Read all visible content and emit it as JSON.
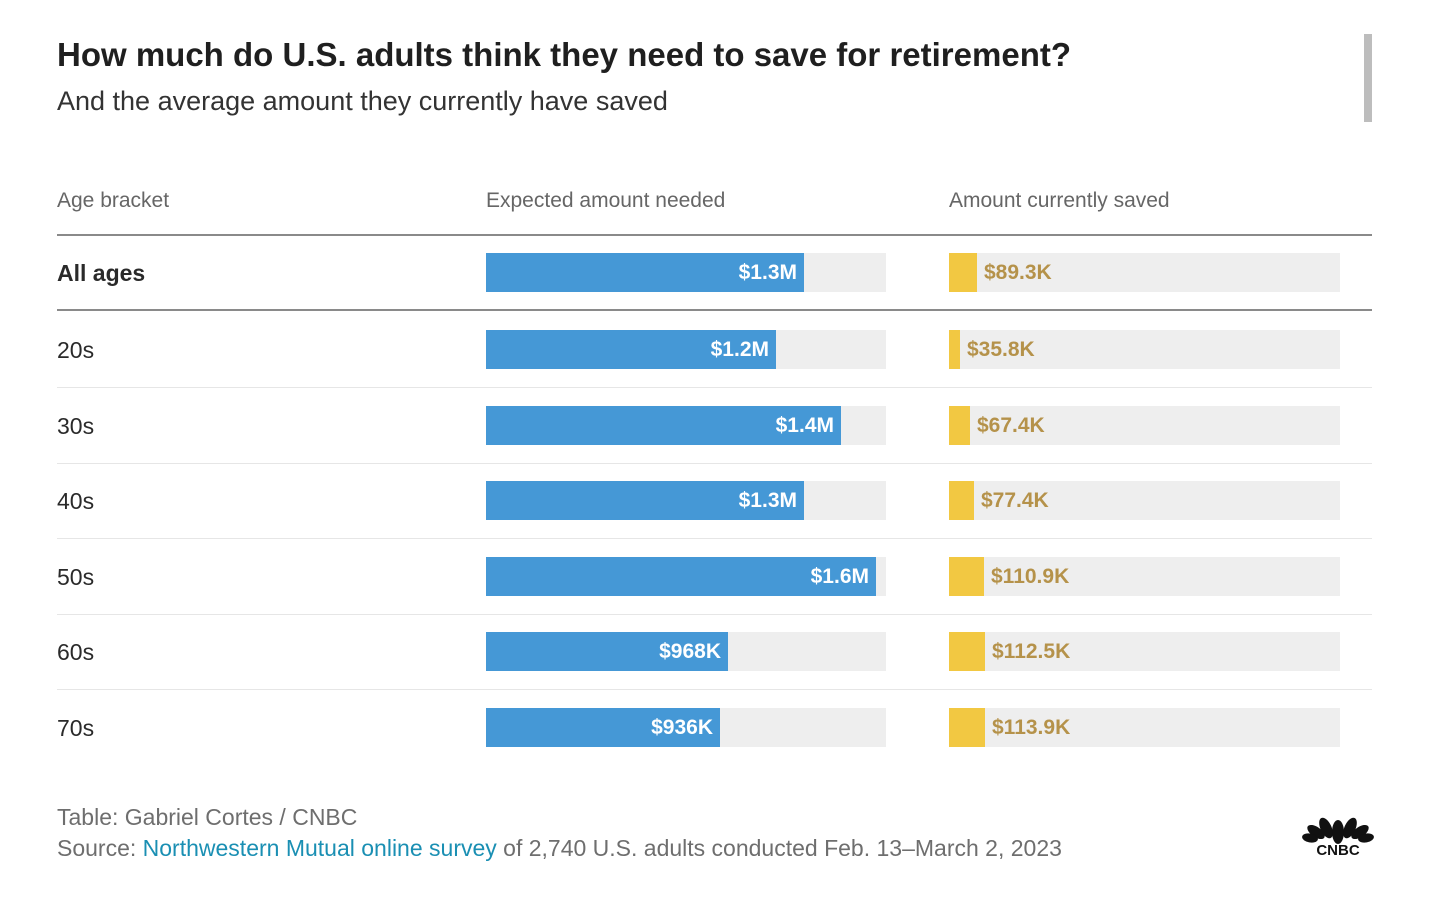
{
  "title": "How much do U.S. adults think they need to save for retirement?",
  "subtitle": "And the average amount they currently have saved",
  "columns": {
    "age": "Age bracket",
    "expected": "Expected amount needed",
    "saved": "Amount currently saved"
  },
  "chart_data": {
    "type": "table",
    "title": "How much do U.S. adults think they need to save for retirement?",
    "subtitle": "And the average amount they currently have saved",
    "categories": [
      "All ages",
      "20s",
      "30s",
      "40s",
      "50s",
      "60s",
      "70s"
    ],
    "series": [
      {
        "name": "Expected amount needed",
        "values": [
          1270000,
          1160000,
          1420000,
          1270000,
          1560000,
          968000,
          936000
        ],
        "labels": [
          "$1.3M",
          "$1.2M",
          "$1.4M",
          "$1.3M",
          "$1.6M",
          "$968K",
          "$936K"
        ],
        "max": 1600000
      },
      {
        "name": "Amount currently saved",
        "values": [
          89300,
          35800,
          67400,
          77400,
          110900,
          112500,
          113900
        ],
        "labels": [
          "$89.3K",
          "$35.8K",
          "$67.4K",
          "$77.4K",
          "$110.9K",
          "$112.5K",
          "$113.9K"
        ],
        "max": 1600000
      }
    ],
    "colors": {
      "expected": "#4598d6",
      "saved": "#f2c842",
      "saved_label": "#b5924a",
      "track": "#eeeeee"
    }
  },
  "footer": {
    "credit": "Table: Gabriel Cortes / CNBC",
    "source_prefix": "Source: ",
    "source_link": "Northwestern Mutual online survey",
    "source_suffix": " of 2,740 U.S. adults conducted Feb. 13–March 2, 2023"
  },
  "logo": {
    "text": "CNBC",
    "icon": "peacock-icon"
  }
}
